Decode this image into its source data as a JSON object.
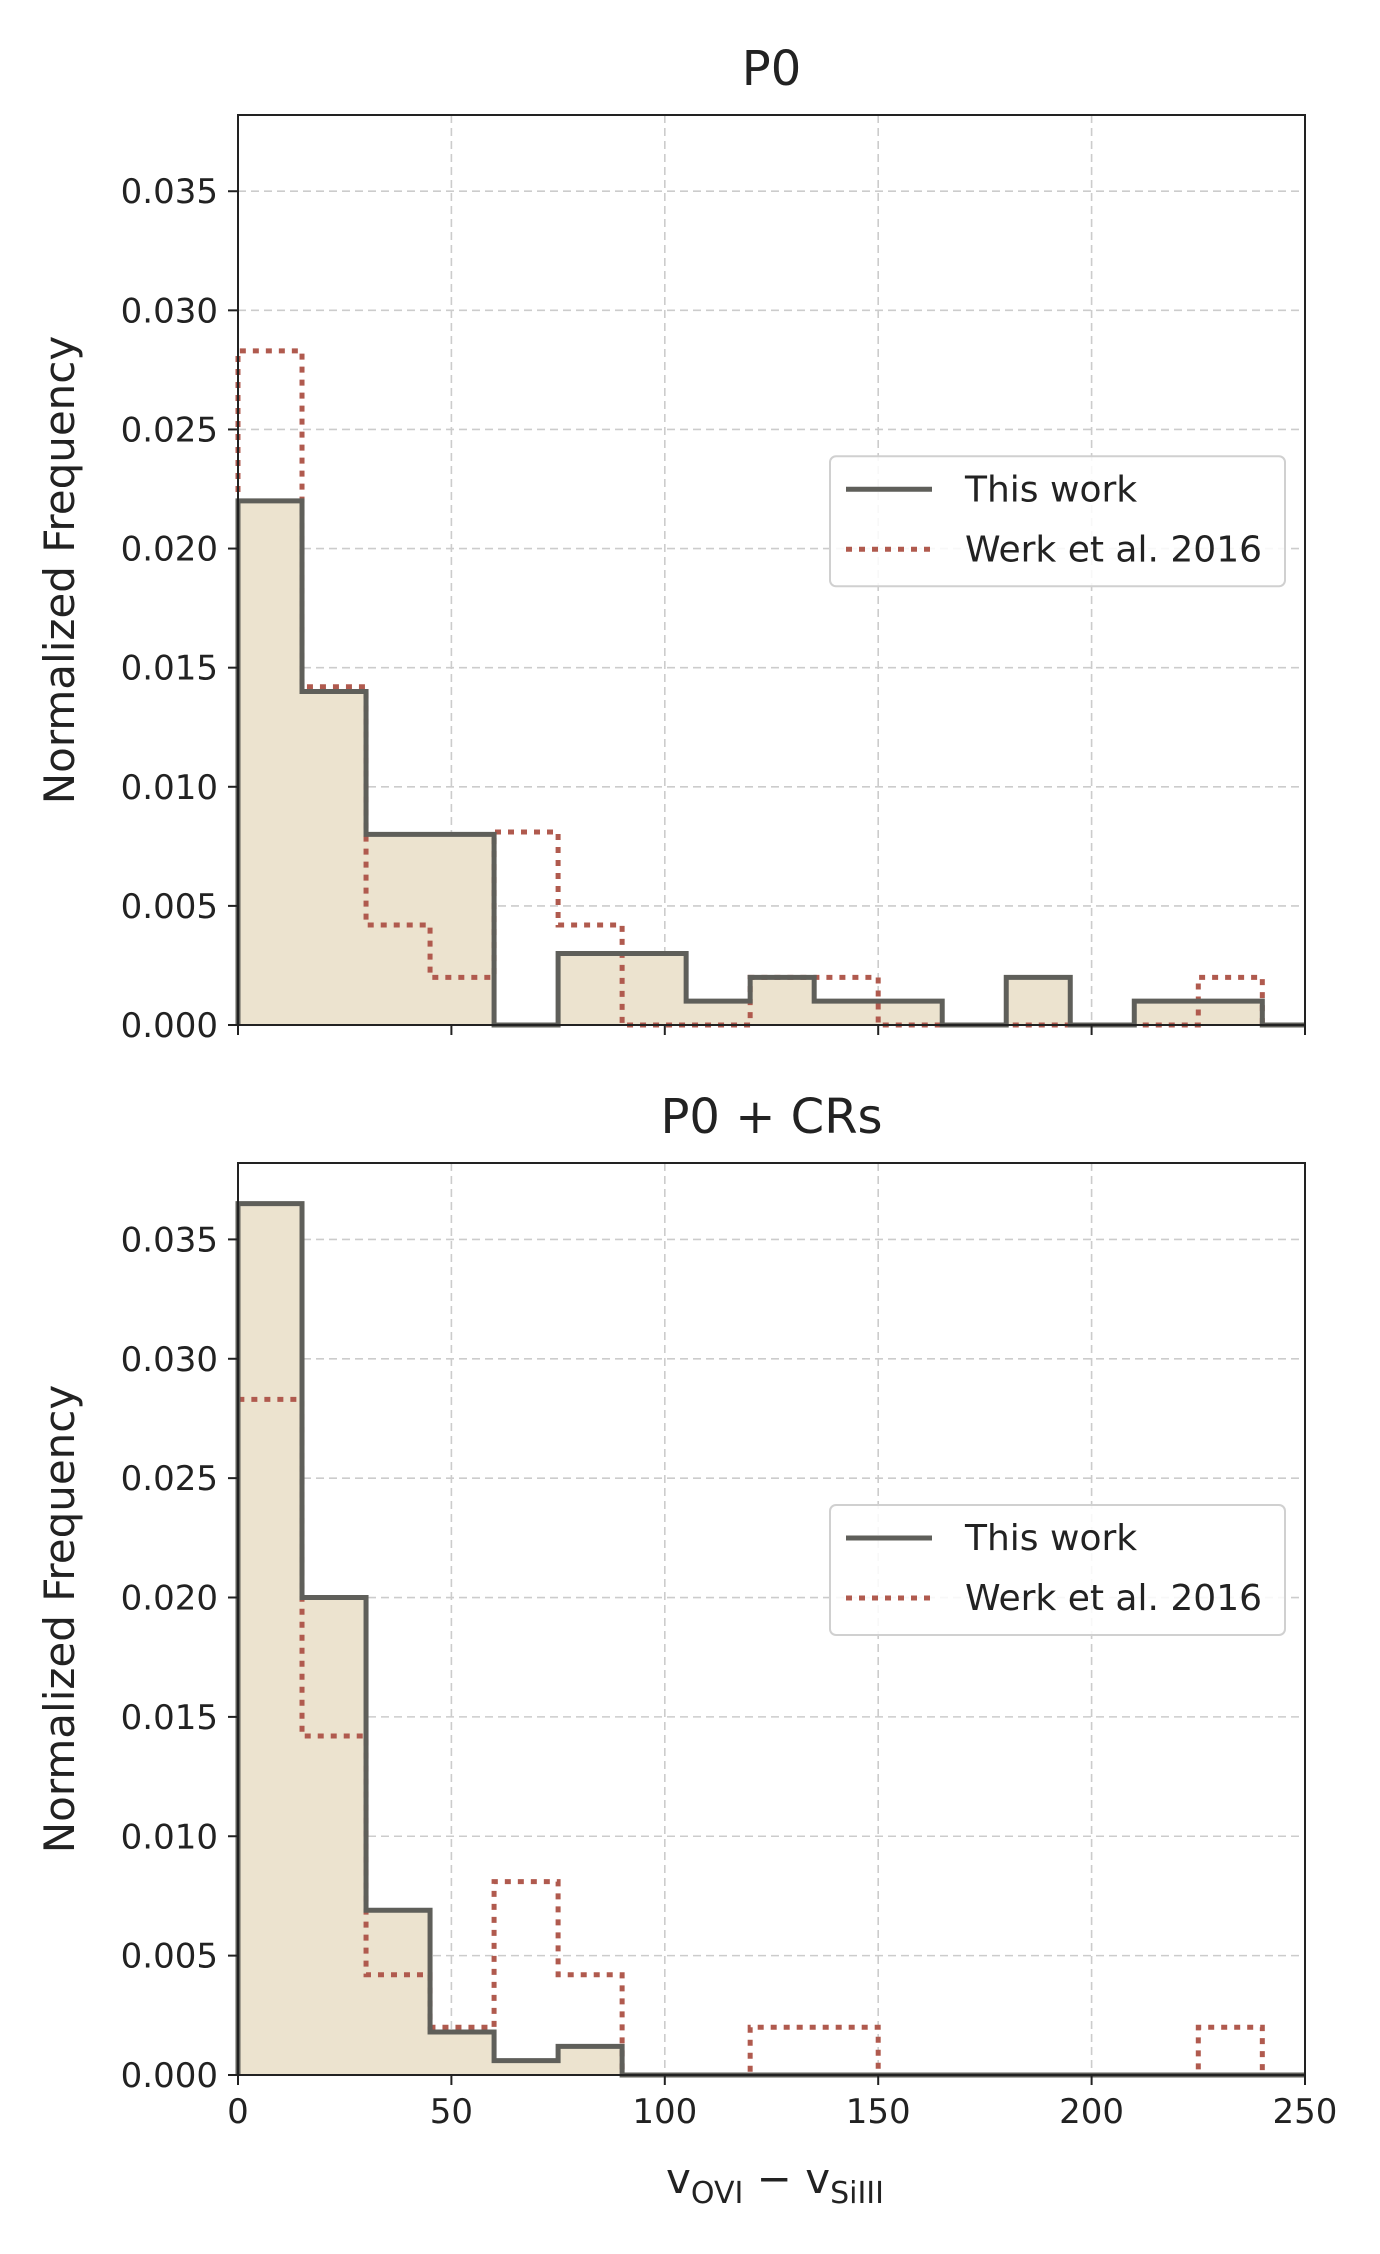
{
  "figure": {
    "xlabel_main": "v",
    "xlabel_sub1": "OVI",
    "xlabel_minus": " − v",
    "xlabel_sub2": "SiIII"
  },
  "colors": {
    "work_line": "#5f5f5a",
    "work_fill": "#ece3cf",
    "werk_line": "#b05a4e",
    "grid": "#cccccc",
    "axis": "#222222"
  },
  "chart_data": [
    {
      "type": "histogram",
      "title": "P0",
      "xlabel": "",
      "ylabel": "Normalized Frequency",
      "xlim": [
        0,
        250
      ],
      "ylim": [
        0,
        0.0382
      ],
      "grid": true,
      "legend_position": "center-right",
      "bin_edges": [
        0,
        15,
        30,
        45,
        60,
        75,
        90,
        105,
        120,
        135,
        150,
        165,
        180,
        195,
        210,
        225,
        240,
        250
      ],
      "xticks": [
        0,
        50,
        100,
        150,
        200,
        250
      ],
      "xticklabels": [
        "",
        "",
        "",
        "",
        "",
        ""
      ],
      "yticks": [
        0,
        0.005,
        0.01,
        0.015,
        0.02,
        0.025,
        0.03,
        0.035
      ],
      "yticklabels": [
        "0.000",
        "0.005",
        "0.010",
        "0.015",
        "0.020",
        "0.025",
        "0.030",
        "0.035"
      ],
      "series": [
        {
          "name": "This work",
          "style": "solid-filled",
          "values": [
            0.022,
            0.014,
            0.008,
            0.008,
            0.0,
            0.003,
            0.003,
            0.001,
            0.002,
            0.001,
            0.001,
            0.0,
            0.002,
            0.0,
            0.001,
            0.001,
            0.0
          ]
        },
        {
          "name": "Werk et al. 2016",
          "style": "dotted",
          "values": [
            0.0283,
            0.0142,
            0.0042,
            0.002,
            0.0081,
            0.0042,
            0.0,
            0.0,
            0.002,
            0.002,
            0.0,
            0.0,
            0.0,
            0.0,
            0.0,
            0.002,
            0.0
          ]
        }
      ]
    },
    {
      "type": "histogram",
      "title": "P0 + CRs",
      "xlabel": "v_OVI − v_SiIII",
      "ylabel": "Normalized Frequency",
      "xlim": [
        0,
        250
      ],
      "ylim": [
        0,
        0.0382
      ],
      "grid": true,
      "legend_position": "center-right",
      "bin_edges": [
        0,
        15,
        30,
        45,
        60,
        75,
        90,
        105,
        120,
        135,
        150,
        165,
        180,
        195,
        210,
        225,
        240,
        250
      ],
      "xticks": [
        0,
        50,
        100,
        150,
        200,
        250
      ],
      "xticklabels": [
        "0",
        "50",
        "100",
        "150",
        "200",
        "250"
      ],
      "yticks": [
        0,
        0.005,
        0.01,
        0.015,
        0.02,
        0.025,
        0.03,
        0.035
      ],
      "yticklabels": [
        "0.000",
        "0.005",
        "0.010",
        "0.015",
        "0.020",
        "0.025",
        "0.030",
        "0.035"
      ],
      "series": [
        {
          "name": "This work",
          "style": "solid-filled",
          "values": [
            0.0365,
            0.02,
            0.0069,
            0.0018,
            0.0006,
            0.0012,
            0.0,
            0.0,
            0.0,
            0.0,
            0.0,
            0.0,
            0.0,
            0.0,
            0.0,
            0.0,
            0.0
          ]
        },
        {
          "name": "Werk et al. 2016",
          "style": "dotted",
          "values": [
            0.0283,
            0.0142,
            0.0042,
            0.002,
            0.0081,
            0.0042,
            0.0,
            0.0,
            0.002,
            0.002,
            0.0,
            0.0,
            0.0,
            0.0,
            0.0,
            0.002,
            0.0
          ]
        }
      ]
    }
  ]
}
